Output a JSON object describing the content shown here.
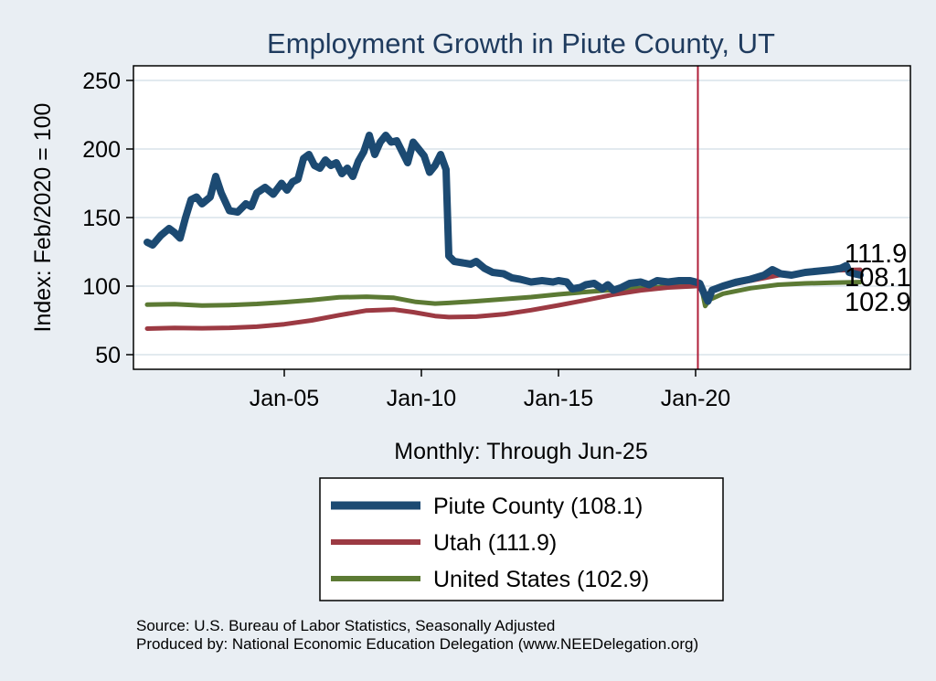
{
  "chart_data": {
    "type": "line",
    "title": "Employment Growth in Piute  County, UT",
    "xlabel": "Monthly: Through Jun-25",
    "ylabel": "Index: Feb/2020 = 100",
    "ylim": [
      40,
      260
    ],
    "yticks": [
      50,
      100,
      150,
      200,
      250
    ],
    "xticks": [
      {
        "label": "Jan-05",
        "t": 2005.0
      },
      {
        "label": "Jan-10",
        "t": 2010.0
      },
      {
        "label": "Jan-15",
        "t": 2015.0
      },
      {
        "label": "Jan-20",
        "t": 2020.0
      }
    ],
    "xlim": [
      2000.0,
      2028.0
    ],
    "reference_line": {
      "t": 2020.083,
      "color": "#b0203a"
    },
    "grid": true,
    "series": [
      {
        "name": "Piute  County",
        "legend_label": "Piute  County (108.1)",
        "end_label": "108.1",
        "color": "#1c4a72",
        "width": 8,
        "points": [
          [
            2000.0,
            132
          ],
          [
            2000.2,
            130
          ],
          [
            2000.5,
            137
          ],
          [
            2000.8,
            142
          ],
          [
            2001.0,
            139
          ],
          [
            2001.2,
            135
          ],
          [
            2001.4,
            150
          ],
          [
            2001.6,
            163
          ],
          [
            2001.8,
            165
          ],
          [
            2002.0,
            160
          ],
          [
            2002.3,
            165
          ],
          [
            2002.5,
            180
          ],
          [
            2002.7,
            168
          ],
          [
            2003.0,
            155
          ],
          [
            2003.3,
            154
          ],
          [
            2003.6,
            160
          ],
          [
            2003.8,
            158
          ],
          [
            2004.0,
            168
          ],
          [
            2004.3,
            172
          ],
          [
            2004.6,
            167
          ],
          [
            2004.9,
            175
          ],
          [
            2005.1,
            170
          ],
          [
            2005.3,
            176
          ],
          [
            2005.5,
            178
          ],
          [
            2005.7,
            193
          ],
          [
            2005.9,
            196
          ],
          [
            2006.1,
            188
          ],
          [
            2006.3,
            186
          ],
          [
            2006.5,
            192
          ],
          [
            2006.7,
            188
          ],
          [
            2006.9,
            190
          ],
          [
            2007.1,
            182
          ],
          [
            2007.3,
            186
          ],
          [
            2007.5,
            180
          ],
          [
            2007.7,
            191
          ],
          [
            2007.9,
            198
          ],
          [
            2008.1,
            210
          ],
          [
            2008.3,
            196
          ],
          [
            2008.5,
            205
          ],
          [
            2008.7,
            210
          ],
          [
            2008.9,
            205
          ],
          [
            2009.1,
            206
          ],
          [
            2009.3,
            198
          ],
          [
            2009.5,
            190
          ],
          [
            2009.7,
            205
          ],
          [
            2009.9,
            200
          ],
          [
            2010.1,
            195
          ],
          [
            2010.3,
            183
          ],
          [
            2010.5,
            188
          ],
          [
            2010.7,
            196
          ],
          [
            2010.9,
            185
          ],
          [
            2011.0,
            122
          ],
          [
            2011.2,
            118
          ],
          [
            2011.5,
            117
          ],
          [
            2011.8,
            116
          ],
          [
            2012.0,
            118
          ],
          [
            2012.3,
            113
          ],
          [
            2012.6,
            110
          ],
          [
            2013.0,
            109
          ],
          [
            2013.3,
            106
          ],
          [
            2013.6,
            105
          ],
          [
            2014.0,
            103
          ],
          [
            2014.4,
            104
          ],
          [
            2014.8,
            103
          ],
          [
            2015.0,
            104
          ],
          [
            2015.3,
            103
          ],
          [
            2015.5,
            98
          ],
          [
            2015.8,
            99
          ],
          [
            2016.0,
            101
          ],
          [
            2016.3,
            102
          ],
          [
            2016.6,
            98
          ],
          [
            2016.8,
            101
          ],
          [
            2017.0,
            97
          ],
          [
            2017.3,
            99
          ],
          [
            2017.6,
            102
          ],
          [
            2018.0,
            103
          ],
          [
            2018.3,
            101
          ],
          [
            2018.6,
            104
          ],
          [
            2019.0,
            103
          ],
          [
            2019.4,
            104
          ],
          [
            2019.8,
            104
          ],
          [
            2020.0,
            103
          ],
          [
            2020.15,
            102
          ],
          [
            2020.3,
            95
          ],
          [
            2020.45,
            89
          ],
          [
            2020.6,
            97
          ],
          [
            2021.0,
            100
          ],
          [
            2021.5,
            103
          ],
          [
            2022.0,
            105
          ],
          [
            2022.5,
            108
          ],
          [
            2022.8,
            112
          ],
          [
            2023.1,
            109
          ],
          [
            2023.5,
            108
          ],
          [
            2024.0,
            110
          ],
          [
            2024.5,
            111
          ],
          [
            2025.0,
            112
          ],
          [
            2025.3,
            113
          ],
          [
            2025.5,
            115
          ],
          [
            2025.6,
            110
          ],
          [
            2025.8,
            109
          ],
          [
            2026.0,
            108.1
          ]
        ]
      },
      {
        "name": "Utah",
        "legend_label": "Utah (111.9)",
        "end_label": "111.9",
        "color": "#9c3a43",
        "width": 5,
        "points": [
          [
            2000.0,
            69
          ],
          [
            2001.0,
            69.5
          ],
          [
            2002.0,
            69.3
          ],
          [
            2003.0,
            69.6
          ],
          [
            2004.0,
            70.4
          ],
          [
            2005.0,
            72.2
          ],
          [
            2006.0,
            75.0
          ],
          [
            2007.0,
            78.8
          ],
          [
            2008.0,
            82.2
          ],
          [
            2009.0,
            82.9
          ],
          [
            2009.7,
            81.0
          ],
          [
            2010.5,
            78.2
          ],
          [
            2011.0,
            77.4
          ],
          [
            2012.0,
            77.7
          ],
          [
            2013.0,
            79.5
          ],
          [
            2014.0,
            82.5
          ],
          [
            2015.0,
            86.0
          ],
          [
            2016.0,
            89.8
          ],
          [
            2017.0,
            93.8
          ],
          [
            2018.0,
            96.9
          ],
          [
            2019.0,
            99.0
          ],
          [
            2020.0,
            100
          ],
          [
            2020.2,
            100.5
          ],
          [
            2020.35,
            93
          ],
          [
            2020.5,
            95
          ],
          [
            2021.0,
            99.8
          ],
          [
            2022.0,
            104.0
          ],
          [
            2023.0,
            107.8
          ],
          [
            2024.0,
            110.0
          ],
          [
            2025.0,
            111.5
          ],
          [
            2026.0,
            111.9
          ]
        ]
      },
      {
        "name": "United States",
        "legend_label": "United States (102.9)",
        "end_label": "102.9",
        "color": "#5c7a34",
        "width": 5,
        "points": [
          [
            2000.0,
            86.5
          ],
          [
            2001.0,
            86.8
          ],
          [
            2002.0,
            85.8
          ],
          [
            2003.0,
            86.2
          ],
          [
            2004.0,
            87.0
          ],
          [
            2005.0,
            88.3
          ],
          [
            2006.0,
            89.8
          ],
          [
            2007.0,
            91.8
          ],
          [
            2008.0,
            92.3
          ],
          [
            2009.0,
            91.5
          ],
          [
            2009.8,
            88.5
          ],
          [
            2010.5,
            87.3
          ],
          [
            2011.0,
            87.7
          ],
          [
            2012.0,
            89.0
          ],
          [
            2013.0,
            90.5
          ],
          [
            2014.0,
            92.0
          ],
          [
            2015.0,
            94.0
          ],
          [
            2016.0,
            95.7
          ],
          [
            2017.0,
            97.3
          ],
          [
            2018.0,
            98.6
          ],
          [
            2019.0,
            99.6
          ],
          [
            2020.0,
            100
          ],
          [
            2020.2,
            100.2
          ],
          [
            2020.35,
            85.5
          ],
          [
            2020.5,
            90
          ],
          [
            2021.0,
            94.5
          ],
          [
            2022.0,
            98.5
          ],
          [
            2023.0,
            101.0
          ],
          [
            2024.0,
            102.0
          ],
          [
            2025.0,
            102.5
          ],
          [
            2026.0,
            102.9
          ]
        ]
      }
    ],
    "notes": [
      "Source: U.S. Bureau of Labor Statistics, Seasonally Adjusted",
      "Produced by: National Economic Education Delegation (www.NEEDelegation.org)"
    ]
  }
}
